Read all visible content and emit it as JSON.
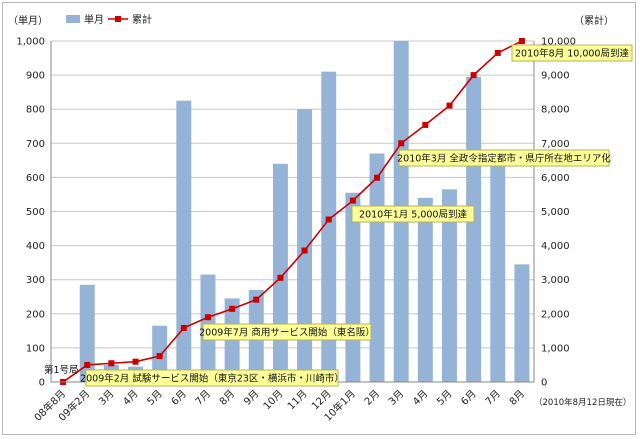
{
  "chart_data": {
    "type": "bar+line",
    "legend": {
      "bar_label": "単月",
      "line_label": "累計",
      "position": "top-left"
    },
    "y_left": {
      "unit_label": "（単月）",
      "range": [
        0,
        1000
      ],
      "ticks": [
        0,
        100,
        200,
        300,
        400,
        500,
        600,
        700,
        800,
        900,
        1000
      ],
      "tick_labels": [
        "0",
        "100",
        "200",
        "300",
        "400",
        "500",
        "600",
        "700",
        "800",
        "900",
        "1,000"
      ]
    },
    "y_right": {
      "unit_label": "（累計）",
      "range": [
        0,
        10000
      ],
      "ticks": [
        0,
        1000,
        2000,
        3000,
        4000,
        5000,
        6000,
        7000,
        8000,
        9000,
        10000
      ],
      "tick_labels": [
        "0",
        "1,000",
        "2,000",
        "3,000",
        "4,000",
        "5,000",
        "6,000",
        "7,000",
        "8,000",
        "9,000",
        "10,000"
      ]
    },
    "categories": [
      "08年8月",
      "09年2月",
      "3月",
      "4月",
      "5月",
      "6月",
      "7月",
      "8月",
      "9月",
      "10月",
      "11月",
      "12月",
      "10年1月",
      "2月",
      "3月",
      "4月",
      "5月",
      "6月",
      "7月",
      "8月"
    ],
    "monthly": [
      0,
      285,
      50,
      45,
      165,
      825,
      315,
      245,
      270,
      640,
      800,
      910,
      555,
      670,
      1000,
      540,
      565,
      895,
      650,
      345
    ],
    "cumulative": [
      1,
      500,
      550,
      595,
      760,
      1585,
      1900,
      2145,
      2415,
      3055,
      3855,
      4765,
      5320,
      5990,
      7000,
      7540,
      8105,
      9000,
      9650,
      10000
    ],
    "annotations": [
      {
        "text": "第1号局",
        "style": "plain"
      },
      {
        "text": "2009年2月 試験サービス開始（東京23区・横浜市・川崎市）",
        "style": "box"
      },
      {
        "text": "2009年7月 商用サービス開始（東名阪）",
        "style": "box"
      },
      {
        "text": "2010年1月 5,000局到達",
        "style": "box"
      },
      {
        "text": "2010年3月 全政令指定都市・県庁所在地エリア化",
        "style": "box"
      },
      {
        "text": "2010年8月 10,000局到達",
        "style": "box"
      }
    ],
    "note": "（2010年8月12日現在）",
    "colors": {
      "bar": "#95b3d7",
      "line": "#cc0000",
      "grid": "#c8c8c8",
      "annotation_bg": "#ffff99",
      "annotation_border": "#b5b550"
    },
    "grid": true
  }
}
